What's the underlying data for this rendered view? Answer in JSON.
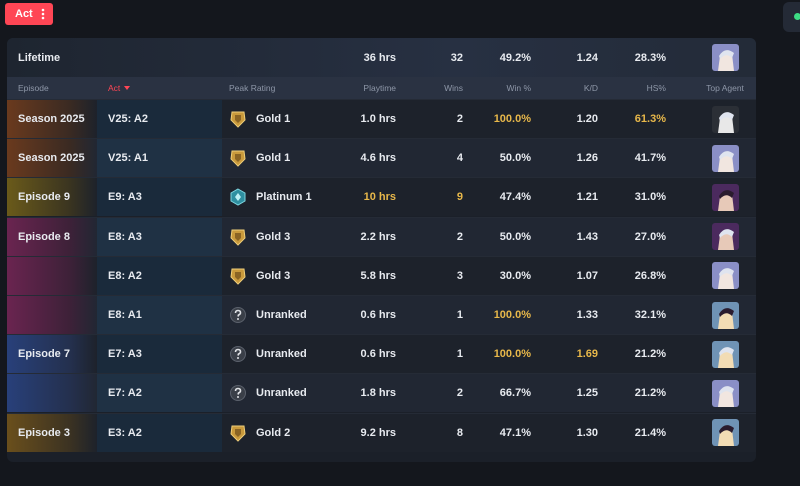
{
  "filter_button": {
    "label": "Act"
  },
  "lifetime": {
    "label": "Lifetime",
    "playtime": "36 hrs",
    "wins": "32",
    "win_pct": "49.2%",
    "kd": "1.24",
    "hs_pct": "28.3%"
  },
  "table": {
    "columns": [
      "Episode",
      "Act",
      "Peak Rating",
      "Playtime",
      "Wins",
      "Win %",
      "K/D",
      "HS%",
      "Top Agent"
    ],
    "sorted_column": 1,
    "rows": [
      {
        "episode": "Season 2025",
        "act": "V25: A2",
        "rank": "Gold 1",
        "playtime": "1.0 hrs",
        "wins": "2",
        "win_pct": "100.0%",
        "kd": "1.20",
        "hs_pct": "61.3%",
        "highlight": [
          "win_pct",
          "hs_pct"
        ]
      },
      {
        "episode": "Season 2025",
        "act": "V25: A1",
        "rank": "Gold 1",
        "playtime": "4.6 hrs",
        "wins": "4",
        "win_pct": "50.0%",
        "kd": "1.26",
        "hs_pct": "41.7%"
      },
      {
        "episode": "Episode 9",
        "act": "E9: A3",
        "rank": "Platinum 1",
        "playtime": "10 hrs",
        "wins": "9",
        "win_pct": "47.4%",
        "kd": "1.21",
        "hs_pct": "31.0%",
        "highlight": [
          "playtime",
          "wins"
        ]
      },
      {
        "episode": "Episode 8",
        "act": "E8: A3",
        "rank": "Gold 3",
        "playtime": "2.2 hrs",
        "wins": "2",
        "win_pct": "50.0%",
        "kd": "1.43",
        "hs_pct": "27.0%"
      },
      {
        "act": "E8: A2",
        "rank": "Gold 3",
        "playtime": "5.8 hrs",
        "wins": "3",
        "win_pct": "30.0%",
        "kd": "1.07",
        "hs_pct": "26.8%"
      },
      {
        "act": "E8: A1",
        "rank": "Unranked",
        "playtime": "0.6 hrs",
        "wins": "1",
        "win_pct": "100.0%",
        "kd": "1.33",
        "hs_pct": "32.1%",
        "highlight": [
          "win_pct"
        ]
      },
      {
        "episode": "Episode 7",
        "act": "E7: A3",
        "rank": "Unranked",
        "playtime": "0.6 hrs",
        "wins": "1",
        "win_pct": "100.0%",
        "kd": "1.69",
        "hs_pct": "21.2%",
        "highlight": [
          "win_pct",
          "kd"
        ]
      },
      {
        "act": "E7: A2",
        "rank": "Unranked",
        "playtime": "1.8 hrs",
        "wins": "2",
        "win_pct": "66.7%",
        "kd": "1.25",
        "hs_pct": "21.2%"
      },
      {
        "episode": "Episode 3",
        "act": "E3: A2",
        "rank": "Gold 2",
        "playtime": "9.2 hrs",
        "wins": "8",
        "win_pct": "47.1%",
        "kd": "1.30",
        "hs_pct": "21.4%"
      }
    ]
  }
}
